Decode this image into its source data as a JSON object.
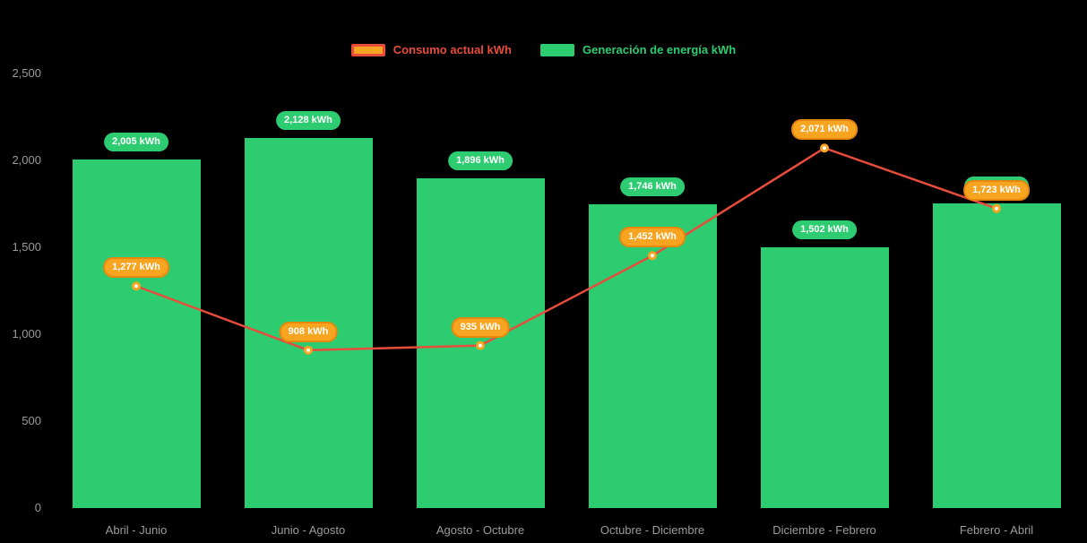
{
  "chart_data": {
    "type": "combo-bar-line",
    "categories": [
      "Abril - Junio",
      "Junio - Agosto",
      "Agosto - Octubre",
      "Octubre - Diciembre",
      "Diciembre - Febrero",
      "Febrero - Abril"
    ],
    "series": [
      {
        "name": "Consumo actual kWh",
        "type": "line",
        "values": [
          1277,
          908,
          935,
          1452,
          2071,
          1723
        ],
        "labels": [
          "1,277 kWh",
          "908 kWh",
          "935 kWh",
          "1,452 kWh",
          "2,071 kWh",
          "1,723 kWh"
        ]
      },
      {
        "name": "Generación de energía kWh",
        "type": "bar",
        "values": [
          2005,
          2128,
          1896,
          1746,
          1502,
          1755
        ],
        "labels": [
          "2,005 kWh",
          "2,128 kWh",
          "1,896 kWh",
          "1,746 kWh",
          "1,502 kWh",
          "1,755 kWh"
        ]
      }
    ],
    "ylim": [
      0,
      2500
    ],
    "yticks": [
      0,
      500,
      1000,
      1500,
      2000,
      2500
    ],
    "ytick_labels": [
      "0",
      "500",
      "1,000",
      "1,500",
      "2,000",
      "2,500"
    ],
    "grid": false,
    "legend_position": "top"
  },
  "colors": {
    "bar": "#2ecc71",
    "line": "#e74c3c",
    "badge_fill": "#f7a421",
    "badge_border": "#e8870e",
    "axis_text": "#9b9b9b",
    "bg": "#000000"
  }
}
